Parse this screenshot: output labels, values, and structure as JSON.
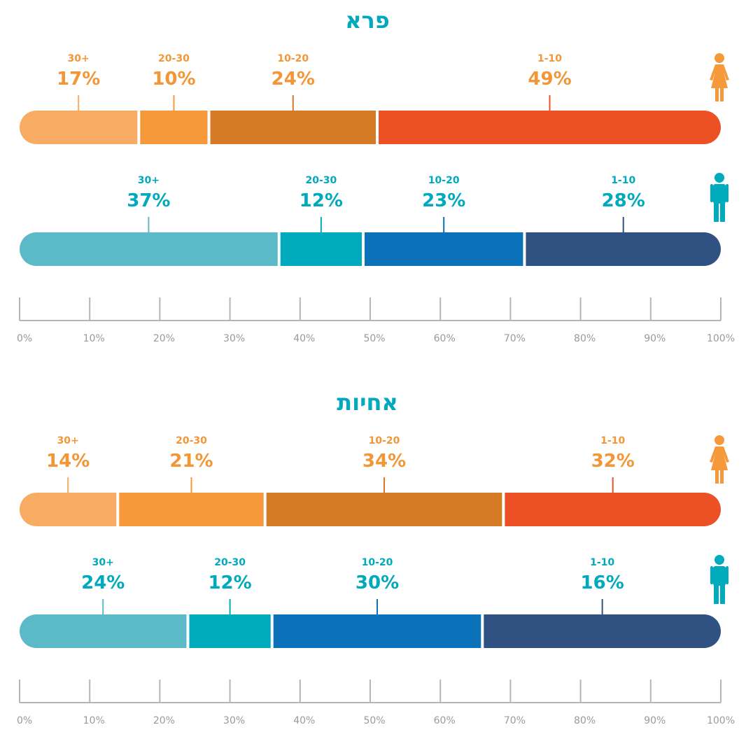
{
  "chart_data": [
    {
      "type": "bar",
      "stacked": true,
      "orientation": "horizontal",
      "title": "פרא",
      "categories": [
        "female",
        "male"
      ],
      "series_labels": [
        "30+",
        "20-30",
        "10-20",
        "1-10"
      ],
      "rows": [
        {
          "name": "female",
          "icon": "female-icon",
          "values": [
            17,
            10,
            24,
            49
          ],
          "value_labels": [
            "17%",
            "10%",
            "24%",
            "49%"
          ],
          "colors": [
            "#f8ab62",
            "#f6993a",
            "#d57b25",
            "#ec5125"
          ],
          "label_color": "#f39637"
        },
        {
          "name": "male",
          "icon": "male-icon",
          "values": [
            37,
            12,
            23,
            28
          ],
          "value_labels": [
            "37%",
            "12%",
            "23%",
            "28%"
          ],
          "colors": [
            "#5cb9c8",
            "#00abbd",
            "#0b72ba",
            "#2f5282"
          ],
          "label_color": "#00a9bd"
        }
      ],
      "xlim": [
        0,
        100
      ],
      "ticks": [
        "0%",
        "10%",
        "20%",
        "30%",
        "40%",
        "50%",
        "60%",
        "70%",
        "80%",
        "90%",
        "100%"
      ]
    },
    {
      "type": "bar",
      "stacked": true,
      "orientation": "horizontal",
      "title": "אחיות",
      "categories": [
        "female",
        "male"
      ],
      "series_labels": [
        "30+",
        "20-30",
        "10-20",
        "1-10"
      ],
      "rows": [
        {
          "name": "female",
          "icon": "female-icon",
          "values": [
            14,
            21,
            34,
            32
          ],
          "value_labels": [
            "14%",
            "21%",
            "34%",
            "32%"
          ],
          "colors": [
            "#f8ab62",
            "#f6993a",
            "#d57b25",
            "#ec5125"
          ],
          "label_color": "#f39637"
        },
        {
          "name": "male",
          "icon": "male-icon",
          "values": [
            24,
            12,
            30,
            16
          ],
          "value_labels": [
            "24%",
            "12%",
            "30%",
            "16%"
          ],
          "colors": [
            "#5cb9c8",
            "#00abbd",
            "#0b72ba",
            "#2f5282"
          ],
          "label_color": "#00a9bd"
        }
      ],
      "xlim": [
        0,
        100
      ],
      "ticks": [
        "0%",
        "10%",
        "20%",
        "30%",
        "40%",
        "50%",
        "60%",
        "70%",
        "80%",
        "90%",
        "100%"
      ]
    }
  ]
}
